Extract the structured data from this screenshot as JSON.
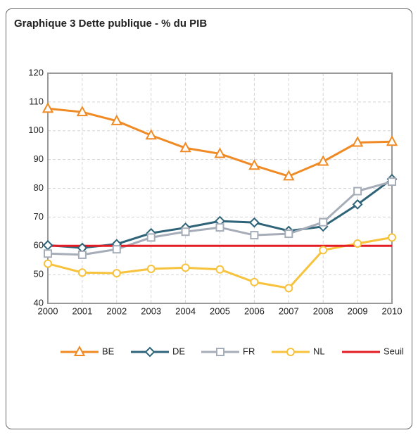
{
  "chart_data": {
    "type": "line",
    "title": "Graphique  3 Dette publique - % du PIB",
    "categories": [
      "2000",
      "2001",
      "2002",
      "2003",
      "2004",
      "2005",
      "2006",
      "2007",
      "2008",
      "2009",
      "2010"
    ],
    "ylim": [
      40,
      120
    ],
    "yticks": [
      40,
      50,
      60,
      70,
      80,
      90,
      100,
      110,
      120
    ],
    "grid": true,
    "series": [
      {
        "name": "BE",
        "color": "#f08a24",
        "marker": "triangle",
        "values": [
          107.7,
          106.5,
          103.4,
          98.4,
          94.0,
          92.0,
          87.9,
          84.2,
          89.3,
          95.9,
          96.2
        ]
      },
      {
        "name": "DE",
        "color": "#2e6378",
        "marker": "diamond",
        "values": [
          60.2,
          59.3,
          60.6,
          64.4,
          66.3,
          68.6,
          68.1,
          65.2,
          66.7,
          74.4,
          83.2
        ]
      },
      {
        "name": "FR",
        "color": "#a6adb8",
        "marker": "square",
        "values": [
          57.3,
          56.9,
          58.8,
          62.9,
          64.9,
          66.4,
          63.7,
          64.2,
          68.2,
          79.0,
          82.3
        ]
      },
      {
        "name": "NL",
        "color": "#f7c23c",
        "marker": "circle",
        "values": [
          53.8,
          50.7,
          50.5,
          52.0,
          52.4,
          51.8,
          47.4,
          45.3,
          58.5,
          60.8,
          62.9
        ]
      },
      {
        "name": "Seuil",
        "color": "#e31b23",
        "marker": "none",
        "values": [
          60,
          60,
          60,
          60,
          60,
          60,
          60,
          60,
          60,
          60,
          60
        ]
      }
    ]
  }
}
